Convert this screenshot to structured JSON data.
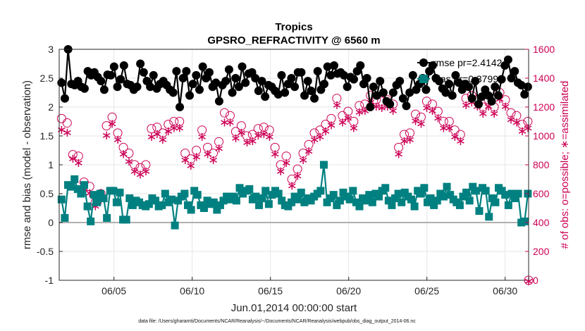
{
  "chart_data": {
    "type": "line",
    "title": "Tropics",
    "subtitle": "GPSRO_REFRACTIVITY @ 6560 m",
    "xlabel": "Jun.01,2014 00:00:00 start",
    "ylabel_left": "rmse and bias (model - observation)",
    "ylabel_right": "# of obs: o=possible; ∗=assimilated",
    "footer": "data file: /Users/gharamti/Documents/NCAR/Reanalysis/~/Documents/NCAR/Reanalysis/webpub/obs_diag_output_2014-06.nc",
    "x_unit": "days since Jun.01,2014 00:00:00",
    "xlim": [
      0.5,
      30.5
    ],
    "ylim_left": [
      -1,
      3
    ],
    "ylim_right": [
      0,
      1600
    ],
    "x_tick_labels": [
      {
        "x": 4,
        "label": "06/05"
      },
      {
        "x": 9,
        "label": "06/10"
      },
      {
        "x": 14,
        "label": "06/15"
      },
      {
        "x": 19,
        "label": "06/20"
      },
      {
        "x": 24,
        "label": "06/25"
      },
      {
        "x": 29,
        "label": "06/30"
      }
    ],
    "y_left_ticks": [
      "-1",
      "-0.5",
      "0",
      "0.5",
      "1",
      "1.5",
      "2",
      "2.5",
      "3"
    ],
    "y_right_ticks": [
      "0",
      "200",
      "400",
      "600",
      "800",
      "1000",
      "1200",
      "1400",
      "1600"
    ],
    "grid": true,
    "legend_position": "top-right",
    "legend": [
      {
        "name": "rmse",
        "text": "rmse pr=2.4142"
      },
      {
        "name": "bias",
        "text": "bias pr=0.37997"
      }
    ],
    "series": [
      {
        "name": "rmse",
        "axis": "left",
        "color": "#000000",
        "marker": "circle",
        "values": [
          2.42,
          2.15,
          3.0,
          2.4,
          2.38,
          2.45,
          2.35,
          2.32,
          2.62,
          2.55,
          2.6,
          2.52,
          2.45,
          2.3,
          2.56,
          2.55,
          2.7,
          2.35,
          2.48,
          2.72,
          2.4,
          2.38,
          2.3,
          2.35,
          2.75,
          2.6,
          2.45,
          2.35,
          2.55,
          2.32,
          2.4,
          2.45,
          2.38,
          2.3,
          2.25,
          2.62,
          2.0,
          2.5,
          2.62,
          2.2,
          2.4,
          2.55,
          2.3,
          2.7,
          2.5,
          2.6,
          2.35,
          2.42,
          2.1,
          2.38,
          2.45,
          2.65,
          2.25,
          2.5,
          2.35,
          2.7,
          2.42,
          2.58,
          2.6,
          2.5,
          2.28,
          2.45,
          2.18,
          2.38,
          2.35,
          2.28,
          2.22,
          2.55,
          2.25,
          2.4,
          2.5,
          2.35,
          2.6,
          2.6,
          2.2,
          2.45,
          2.28,
          2.15,
          2.62,
          2.3,
          2.4,
          2.7,
          2.55,
          2.72,
          2.58,
          2.6,
          2.55,
          2.35,
          2.52,
          2.48,
          2.62,
          2.72,
          2.4,
          2.5,
          2.0,
          2.35,
          2.2,
          2.45,
          2.25,
          2.1,
          2.05,
          2.25,
          2.38,
          2.45,
          2.15,
          2.02,
          2.25,
          2.55,
          2.3,
          2.4,
          2.5,
          2.3,
          2.62,
          2.72,
          2.5,
          2.45,
          2.32,
          2.25,
          2.4,
          2.2,
          2.55,
          2.42,
          2.3,
          2.4,
          2.35,
          2.15,
          2.45,
          2.05,
          2.18,
          2.3,
          2.2,
          2.1,
          2.35,
          2.2,
          2.48,
          2.72,
          2.82,
          2.5,
          2.62,
          2.42,
          2.38,
          2.22,
          2.35
        ]
      },
      {
        "name": "bias",
        "axis": "left",
        "color": "#008080",
        "marker": "square",
        "values": [
          0.4,
          0.08,
          0.65,
          0.62,
          0.75,
          0.58,
          0.5,
          0.65,
          0.28,
          0.02,
          0.48,
          0.35,
          0.5,
          0.42,
          0.08,
          0.55,
          0.55,
          0.35,
          0.52,
          0.05,
          0.05,
          0.42,
          0.3,
          0.38,
          0.35,
          0.3,
          0.28,
          0.32,
          0.42,
          0.38,
          0.28,
          0.3,
          0.5,
          0.35,
          0.4,
          -0.05,
          0.38,
          0.45,
          0.5,
          0.3,
          0.22,
          0.55,
          0.48,
          0.3,
          0.25,
          0.38,
          0.32,
          0.35,
          0.22,
          0.3,
          0.38,
          0.45,
          0.4,
          0.45,
          0.38,
          0.6,
          0.5,
          0.55,
          0.58,
          0.4,
          0.45,
          0.3,
          0.42,
          0.55,
          0.32,
          0.48,
          0.55,
          0.5,
          0.38,
          0.3,
          0.28,
          0.35,
          0.45,
          0.4,
          0.52,
          0.35,
          0.42,
          0.38,
          0.45,
          0.5,
          0.55,
          1.0,
          0.35,
          0.42,
          0.48,
          0.3,
          0.38,
          0.52,
          0.45,
          0.4,
          0.55,
          0.35,
          0.28,
          0.42,
          0.38,
          0.48,
          0.35,
          0.5,
          0.45,
          0.55,
          0.6,
          0.38,
          0.3,
          0.42,
          0.5,
          0.35,
          0.52,
          0.45,
          0.4,
          0.28,
          0.55,
          0.5,
          0.6,
          0.35,
          0.42,
          0.3,
          0.38,
          0.5,
          0.45,
          0.62,
          0.48,
          0.4,
          0.35,
          0.3,
          0.45,
          0.52,
          0.38,
          0.62,
          0.55,
          0.2,
          0.6,
          0.55,
          0.1,
          0.42,
          0.35,
          0.6,
          0.55,
          0.48,
          0.3,
          0.5,
          0.42,
          0.5,
          0.0,
          0.02,
          0.5
        ]
      },
      {
        "name": "obs_possible",
        "axis": "right",
        "color": "#cc0055",
        "marker": "open-circle",
        "values": [
          1120,
          1090,
          870,
          860,
          680,
          650,
          540,
          600,
          1070,
          1130,
          1020,
          920,
          880,
          800,
          780,
          800,
          1050,
          1060,
          1020,
          1080,
          1100,
          1100,
          880,
          840,
          900,
          1040,
          920,
          880,
          960,
          1160,
          1140,
          1030,
          1070,
          1000,
          1010,
          1050,
          1060,
          1040,
          920,
          800,
          860,
          700,
          770,
          880,
          940,
          1020,
          1040,
          1080,
          1120,
          1260,
          1140,
          1170,
          1100,
          1210,
          1220,
          1280,
          1250,
          1240,
          1250,
          1220,
          920,
          1010,
          1020,
          1150,
          1130,
          1240,
          1220,
          1170,
          1100,
          1100,
          1040,
          1010,
          1260,
          1280,
          1250,
          1200,
          1250,
          1200,
          1300,
          1250,
          1160,
          1140,
          1080,
          1100
        ]
      },
      {
        "name": "obs_assimilated",
        "axis": "right",
        "color": "#cc0055",
        "marker": "asterisk",
        "values": [
          1050,
          1030,
          850,
          820,
          640,
          610,
          520,
          560,
          1010,
          1090,
          980,
          880,
          830,
          760,
          740,
          760,
          1000,
          1020,
          980,
          1040,
          1060,
          1060,
          840,
          800,
          860,
          1000,
          880,
          840,
          920,
          1100,
          1100,
          990,
          1030,
          960,
          970,
          1010,
          1020,
          1000,
          880,
          760,
          820,
          660,
          730,
          840,
          900,
          980,
          1000,
          1040,
          1080,
          1220,
          1100,
          1130,
          1060,
          1170,
          1180,
          1240,
          1210,
          1200,
          1210,
          1180,
          880,
          970,
          980,
          1110,
          1090,
          1200,
          1180,
          1130,
          1060,
          1060,
          1000,
          970,
          1220,
          1240,
          1210,
          1160,
          1210,
          1160,
          1260,
          1210,
          1120,
          1100,
          1040,
          1060
        ]
      }
    ]
  }
}
